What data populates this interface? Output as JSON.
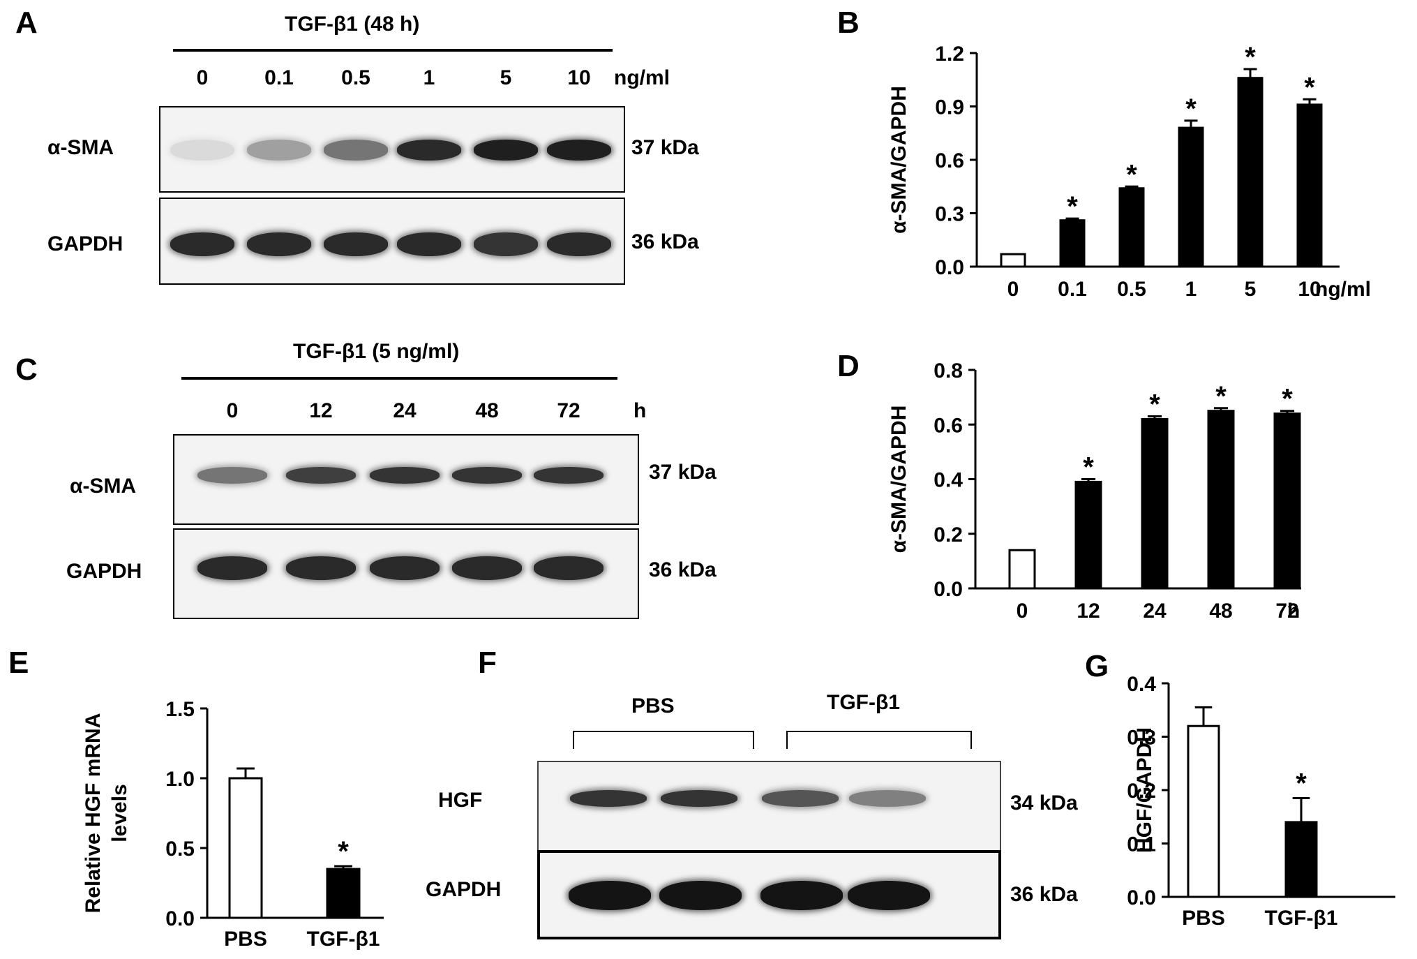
{
  "panels": {
    "A": {
      "letter": "A",
      "treatment": "TGF-β1 (48 h)",
      "lanes": [
        "0",
        "0.1",
        "0.5",
        "1",
        "5",
        "10"
      ],
      "unit": "ng/ml",
      "rows": [
        {
          "label": "α-SMA",
          "size": "37 kDa",
          "intensity": [
            0.08,
            0.35,
            0.55,
            0.9,
            0.95,
            0.95
          ]
        },
        {
          "label": "GAPDH",
          "size": "36 kDa",
          "intensity": [
            0.9,
            0.9,
            0.9,
            0.9,
            0.85,
            0.9
          ]
        }
      ]
    },
    "C": {
      "letter": "C",
      "treatment": "TGF-β1 (5 ng/ml)",
      "lanes": [
        "0",
        "12",
        "24",
        "48",
        "72"
      ],
      "unit": "h",
      "rows": [
        {
          "label": "α-SMA",
          "size": "37 kDa",
          "intensity": [
            0.55,
            0.8,
            0.85,
            0.85,
            0.85
          ]
        },
        {
          "label": "GAPDH",
          "size": "36 kDa",
          "intensity": [
            0.9,
            0.9,
            0.9,
            0.9,
            0.9
          ]
        }
      ]
    },
    "F": {
      "letter": "F",
      "groups": [
        "PBS",
        "TGF-β1"
      ],
      "rows": [
        {
          "label": "HGF",
          "size": "34 kDa",
          "intensity": [
            0.85,
            0.85,
            0.7,
            0.5
          ]
        },
        {
          "label": "GAPDH",
          "size": "36 kDa",
          "intensity": [
            1,
            1,
            1,
            1
          ]
        }
      ]
    }
  },
  "chart_data": [
    {
      "panel": "B",
      "type": "bar",
      "categories": [
        "0",
        "0.1",
        "0.5",
        "1",
        "5",
        "10"
      ],
      "x_unit": "ng/ml",
      "values": [
        0.07,
        0.26,
        0.44,
        0.78,
        1.06,
        0.91
      ],
      "errors": [
        0.0,
        0.01,
        0.01,
        0.04,
        0.05,
        0.03
      ],
      "significant": [
        false,
        true,
        true,
        true,
        true,
        true
      ],
      "fill": [
        "#ffffff",
        "#000000",
        "#000000",
        "#000000",
        "#000000",
        "#000000"
      ],
      "ylabel": "α-SMA/GAPDH",
      "ylim": [
        0,
        1.2
      ],
      "yticks": [
        "0.0",
        "0.3",
        "0.6",
        "0.9",
        "1.2"
      ]
    },
    {
      "panel": "D",
      "type": "bar",
      "categories": [
        "0",
        "12",
        "24",
        "48",
        "72"
      ],
      "x_unit": "h",
      "values": [
        0.14,
        0.39,
        0.62,
        0.65,
        0.64
      ],
      "errors": [
        0.0,
        0.01,
        0.01,
        0.01,
        0.01
      ],
      "significant": [
        false,
        true,
        true,
        true,
        true
      ],
      "fill": [
        "#ffffff",
        "#000000",
        "#000000",
        "#000000",
        "#000000"
      ],
      "ylabel": "α-SMA/GAPDH",
      "ylim": [
        0,
        0.8
      ],
      "yticks": [
        "0.0",
        "0.2",
        "0.4",
        "0.6",
        "0.8"
      ]
    },
    {
      "panel": "E",
      "type": "bar",
      "categories": [
        "PBS",
        "TGF-β1"
      ],
      "values": [
        1.0,
        0.35
      ],
      "errors": [
        0.07,
        0.02
      ],
      "significant": [
        false,
        true
      ],
      "fill": [
        "#ffffff",
        "#000000"
      ],
      "ylabel": "Relative HGF  mRNA levels",
      "ylim": [
        0,
        1.5
      ],
      "yticks": [
        "0.0",
        "0.5",
        "1.0",
        "1.5"
      ]
    },
    {
      "panel": "G",
      "type": "bar",
      "categories": [
        "PBS",
        "TGF-β1"
      ],
      "values": [
        0.32,
        0.14
      ],
      "errors": [
        0.035,
        0.045
      ],
      "significant": [
        false,
        true
      ],
      "fill": [
        "#ffffff",
        "#000000"
      ],
      "ylabel": "HGF/GAPDH",
      "ylim": [
        0,
        0.4
      ],
      "yticks": [
        "0.0",
        "0.1",
        "0.2",
        "0.3",
        "0.4"
      ]
    }
  ],
  "significance_mark": "*",
  "letters": {
    "B": "B",
    "D": "D",
    "E": "E",
    "G": "G"
  }
}
